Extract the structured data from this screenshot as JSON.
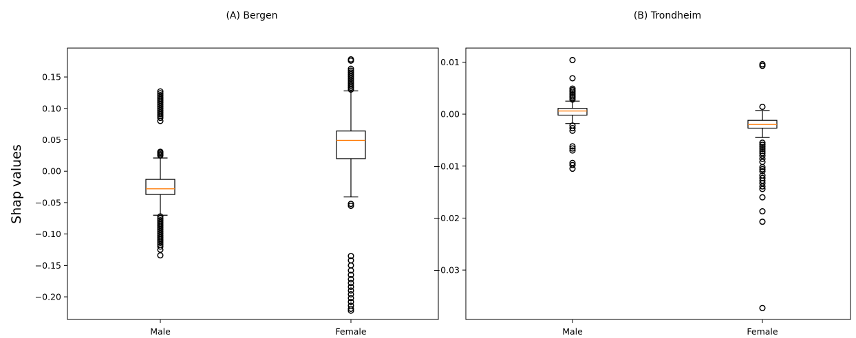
{
  "figure": {
    "ylabel": "Shap values"
  },
  "chart_data": [
    {
      "type": "box",
      "title": "(A) Bergen",
      "ylabel": "Shap values",
      "categories": [
        "Male",
        "Female"
      ],
      "ylim": [
        -0.236,
        0.196
      ],
      "yticks": [
        0.15,
        0.1,
        0.05,
        0.0,
        -0.05,
        -0.1,
        -0.15,
        -0.2
      ],
      "ytick_labels": [
        "0.15",
        "0.10",
        "0.05",
        "0.00",
        "−0.05",
        "−0.10",
        "−0.15",
        "−0.20"
      ],
      "grid": false,
      "boxes": [
        {
          "category": "Male",
          "whisker_low": -0.07,
          "q1": -0.037,
          "median": -0.028,
          "q3": -0.013,
          "whisker_high": 0.021,
          "fliers": [
            0.127,
            0.124,
            0.121,
            0.118,
            0.115,
            0.112,
            0.109,
            0.106,
            0.103,
            0.1,
            0.097,
            0.094,
            0.091,
            0.088,
            0.085,
            0.08,
            0.031,
            0.029,
            0.027,
            0.025,
            -0.072,
            -0.075,
            -0.078,
            -0.081,
            -0.084,
            -0.087,
            -0.09,
            -0.093,
            -0.096,
            -0.099,
            -0.102,
            -0.105,
            -0.108,
            -0.111,
            -0.114,
            -0.117,
            -0.12,
            -0.125,
            -0.134
          ]
        },
        {
          "category": "Female",
          "whisker_low": -0.041,
          "q1": 0.02,
          "median": 0.049,
          "q3": 0.064,
          "whisker_high": 0.128,
          "fliers": [
            0.178,
            0.176,
            0.163,
            0.16,
            0.157,
            0.154,
            0.151,
            0.148,
            0.145,
            0.142,
            0.139,
            0.136,
            0.133,
            0.13,
            -0.052,
            -0.055,
            -0.135,
            -0.142,
            -0.15,
            -0.158,
            -0.165,
            -0.172,
            -0.178,
            -0.184,
            -0.19,
            -0.196,
            -0.202,
            -0.208,
            -0.214,
            -0.219,
            -0.222
          ]
        }
      ]
    },
    {
      "type": "box",
      "title": "(B) Trondheim",
      "categories": [
        "Male",
        "Female"
      ],
      "ylim": [
        -0.0395,
        0.0127
      ],
      "yticks": [
        0.01,
        0.0,
        -0.01,
        -0.02,
        -0.03
      ],
      "ytick_labels": [
        "0.01",
        "0.00",
        "−0.01",
        "−0.02",
        "−0.03"
      ],
      "grid": false,
      "boxes": [
        {
          "category": "Male",
          "whisker_low": -0.0018,
          "q1": -0.0002,
          "median": 0.0006,
          "q3": 0.0011,
          "whisker_high": 0.0025,
          "fliers": [
            0.0104,
            0.0069,
            0.0049,
            0.0046,
            0.0043,
            0.004,
            0.0037,
            0.0034,
            0.0031,
            0.0028,
            -0.0022,
            -0.0027,
            -0.0032,
            -0.0062,
            -0.0066,
            -0.007,
            -0.0094,
            -0.0098,
            -0.0105
          ]
        },
        {
          "category": "Female",
          "whisker_low": -0.0045,
          "q1": -0.0027,
          "median": -0.002,
          "q3": -0.0012,
          "whisker_high": 0.0007,
          "fliers": [
            0.0096,
            0.0093,
            0.0014,
            -0.0055,
            -0.0059,
            -0.0063,
            -0.0067,
            -0.0071,
            -0.0075,
            -0.008,
            -0.0086,
            -0.0092,
            -0.0102,
            -0.0106,
            -0.011,
            -0.0118,
            -0.0123,
            -0.0128,
            -0.0133,
            -0.0139,
            -0.0144,
            -0.016,
            -0.0187,
            -0.0207,
            -0.0373
          ]
        }
      ]
    }
  ],
  "colors": {
    "median": "#ff7f0e",
    "box": "#000000",
    "flier": "#000000"
  }
}
